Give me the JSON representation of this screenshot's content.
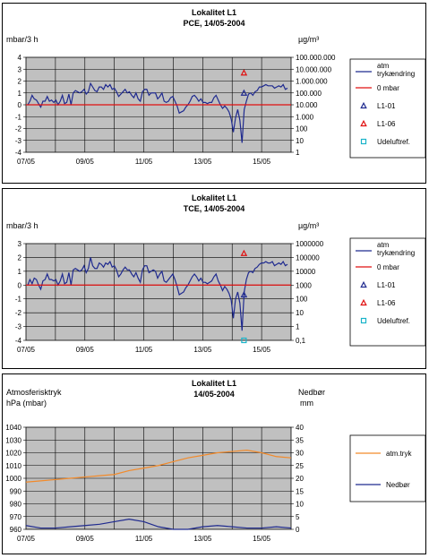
{
  "chart_data": [
    {
      "type": "line",
      "title": "Lokalitet L1",
      "subtitle": "PCE, 14/05-2004",
      "ylabel_left": "mbar/3 h",
      "ylabel_right": "µg/m³",
      "ylim_left": [
        -4,
        4
      ],
      "yticks_left": [
        "4",
        "3",
        "2",
        "1",
        "0",
        "-1",
        "-2",
        "-3",
        "-4"
      ],
      "yticks_right": [
        "100.000.000",
        "10.000.000",
        "1.000.000",
        "100.000",
        "10.000",
        "1.000",
        "100",
        "10",
        "1"
      ],
      "x_range": [
        0,
        9
      ],
      "xticks": [
        "07/05",
        "09/05",
        "11/05",
        "13/05",
        "15/05"
      ],
      "grid": true,
      "legend_position": "right",
      "legend": [
        "atm trykændring",
        "0 mbar",
        "L1-01",
        "L1-06",
        "Udeluftref."
      ],
      "series": [
        {
          "name": "atm trykændring",
          "color": "#1f2a8f",
          "values": [
            0,
            0.3,
            0.8,
            0.5,
            0.4,
            0.1,
            -0.2,
            0.3,
            0.3,
            0.7,
            0.3,
            0.4,
            0.2,
            0.4,
            0.0,
            0.3,
            0.8,
            0.1,
            0.2,
            0.9,
            0.0,
            1.0,
            1.2,
            1.1,
            1.0,
            1.1,
            1.3,
            0.9,
            1.1,
            1.8,
            1.5,
            1.2,
            1.1,
            1.5,
            1.5,
            1.3,
            1.7,
            1.5,
            1.7,
            1.3,
            1.4,
            1.1,
            0.7,
            0.9,
            1.1,
            1.3,
            1.0,
            1.1,
            0.8,
            0.6,
            1.0,
            0.5,
            0.3,
            1.1,
            1.3,
            1.3,
            0.8,
            1.0,
            1.0,
            1.0,
            0.5,
            0.7,
            1.0,
            0.3,
            0.2,
            0.3,
            0.6,
            0.7,
            0.3,
            -0.1,
            -0.7,
            -0.6,
            -0.5,
            -0.2,
            0.0,
            0.3,
            0.7,
            0.8,
            0.6,
            0.3,
            0.5,
            0.2,
            0.2,
            0.1,
            0.2,
            0.2,
            0.6,
            0.8,
            0.4,
            0.0,
            -0.3,
            -0.1,
            -0.3,
            -0.6,
            -1.2,
            -2.3,
            -1.1,
            -0.4,
            -1.3,
            -3.2,
            -0.4,
            0.3,
            0.9,
            1.0,
            0.8,
            1.1,
            1.2,
            1.5,
            1.5,
            1.6,
            1.7,
            1.6,
            1.6,
            1.6,
            1.4,
            1.5,
            1.6,
            1.5,
            1.7,
            1.3,
            1.4
          ]
        },
        {
          "name": "0 mbar",
          "color": "#e01010",
          "values": [
            0,
            0
          ]
        },
        {
          "name": "L1-01",
          "color": "#1f2a8f",
          "marker": "triangle",
          "x": [
            7.4
          ],
          "y": [
            100000
          ]
        },
        {
          "name": "L1-06",
          "color": "#e01010",
          "marker": "triangle",
          "x": [
            7.4
          ],
          "y": [
            5000000
          ]
        },
        {
          "name": "Udeluftref.",
          "color": "#19b3c9",
          "marker": "square",
          "x": [],
          "y": []
        }
      ]
    },
    {
      "type": "line",
      "title": "Lokalitet L1",
      "subtitle": "TCE, 14/05-2004",
      "ylabel_left": "mbar/3 h",
      "ylabel_right": "µg/m³",
      "ylim_left": [
        -4,
        3
      ],
      "yticks_left": [
        "3",
        "2",
        "1",
        "0",
        "-1",
        "-2",
        "-3",
        "-4"
      ],
      "yticks_right": [
        "1000000",
        "100000",
        "10000",
        "1000",
        "100",
        "10",
        "1",
        "0,1"
      ],
      "x_range": [
        0,
        9
      ],
      "xticks": [
        "07/05",
        "09/05",
        "11/05",
        "13/05",
        "15/05"
      ],
      "grid": true,
      "legend_position": "right",
      "legend": [
        "atm trykændring",
        "0 mbar",
        "L1-01",
        "L1-06",
        "Udeluftref."
      ],
      "series": [
        {
          "name": "atm trykændring",
          "color": "#1f2a8f",
          "values": [
            0,
            0.4,
            0.1,
            0.5,
            0.4,
            0.0,
            -0.3,
            0.3,
            0.4,
            0.8,
            0.4,
            0.4,
            0.3,
            0.4,
            0.0,
            0.3,
            0.8,
            0.1,
            0.2,
            0.9,
            0.0,
            1.1,
            1.2,
            1.1,
            1.0,
            1.1,
            1.4,
            0.9,
            1.2,
            2.0,
            1.4,
            1.2,
            1.2,
            1.6,
            1.5,
            1.3,
            1.6,
            1.5,
            1.7,
            1.3,
            1.4,
            1.1,
            0.6,
            0.8,
            1.1,
            1.3,
            1.1,
            1.1,
            0.8,
            0.6,
            0.9,
            0.5,
            0.2,
            1.1,
            1.4,
            1.4,
            0.9,
            1.0,
            1.1,
            1.0,
            0.5,
            0.8,
            1.0,
            0.3,
            0.2,
            0.4,
            0.6,
            0.8,
            0.4,
            -0.1,
            -0.7,
            -0.6,
            -0.5,
            -0.2,
            0.0,
            0.3,
            0.6,
            0.8,
            0.6,
            0.3,
            0.5,
            0.2,
            0.2,
            0.1,
            0.2,
            0.3,
            0.6,
            0.8,
            0.3,
            0.0,
            -0.4,
            -0.1,
            -0.3,
            -0.6,
            -1.1,
            -2.4,
            -1.0,
            -0.5,
            -1.3,
            -3.3,
            -0.5,
            0.4,
            0.9,
            1.0,
            0.9,
            1.2,
            1.3,
            1.5,
            1.6,
            1.6,
            1.7,
            1.6,
            1.6,
            1.7,
            1.4,
            1.5,
            1.6,
            1.5,
            1.7,
            1.4,
            1.5
          ]
        },
        {
          "name": "0 mbar",
          "color": "#e01010",
          "values": [
            0,
            0
          ]
        },
        {
          "name": "L1-01",
          "color": "#1f2a8f",
          "marker": "triangle",
          "x": [
            7.4
          ],
          "y": [
            200
          ]
        },
        {
          "name": "L1-06",
          "color": "#e01010",
          "marker": "triangle",
          "x": [
            7.4
          ],
          "y": [
            200000
          ]
        },
        {
          "name": "Udeluftref.",
          "color": "#19b3c9",
          "marker": "square",
          "x": [
            7.4
          ],
          "y": [
            0.1
          ]
        }
      ]
    },
    {
      "type": "line",
      "title": "Lokalitet L1",
      "subtitle": "14/05-2004",
      "ylabel_left_1": "Atmosferisktryk",
      "ylabel_left_2": "hPa (mbar)",
      "ylabel_right_1": "Nedbør",
      "ylabel_right_2": "mm",
      "ylim_left": [
        960,
        1040
      ],
      "ylim_right": [
        0,
        40
      ],
      "yticks_left": [
        "1040",
        "1030",
        "1020",
        "1010",
        "1000",
        "990",
        "980",
        "970",
        "960"
      ],
      "yticks_right": [
        "40",
        "35",
        "30",
        "25",
        "20",
        "15",
        "10",
        "5",
        "0"
      ],
      "x_range": [
        0,
        9
      ],
      "xticks": [
        "07/05",
        "09/05",
        "11/05",
        "13/05",
        "15/05"
      ],
      "grid": true,
      "legend_position": "right",
      "legend": [
        "atm.tryk",
        "Nedbør"
      ],
      "series": [
        {
          "name": "atm.tryk",
          "color": "#f28a2a",
          "axis": "left",
          "x": [
            0,
            0.5,
            1.0,
            1.5,
            2.0,
            2.5,
            3.0,
            3.5,
            4.0,
            4.5,
            5.0,
            5.5,
            6.0,
            6.5,
            7.0,
            7.5,
            8.0,
            8.5,
            9.0
          ],
          "y": [
            997,
            998,
            999,
            1000,
            1001,
            1002,
            1003,
            1006,
            1008,
            1010,
            1013,
            1016,
            1018,
            1020,
            1021,
            1022,
            1020,
            1017,
            1016
          ]
        },
        {
          "name": "Nedbør",
          "color": "#1f2a8f",
          "axis": "right",
          "x": [
            0,
            0.5,
            1.0,
            1.5,
            2.0,
            2.5,
            3.0,
            3.5,
            4.0,
            4.5,
            5.0,
            5.5,
            6.0,
            6.5,
            7.0,
            7.5,
            8.0,
            8.5,
            9.0
          ],
          "y": [
            1.5,
            0.5,
            0.5,
            1,
            1.5,
            2,
            3,
            4,
            3,
            1,
            0,
            0,
            1,
            1.5,
            1,
            0.5,
            0.5,
            1,
            0.5
          ]
        }
      ]
    }
  ]
}
